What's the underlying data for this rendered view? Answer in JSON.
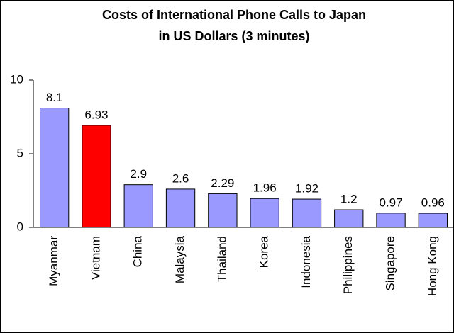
{
  "chart_data": {
    "type": "bar",
    "title": [
      "Costs of International Phone Calls to Japan",
      "in US Dollars (3 minutes)"
    ],
    "categories": [
      "Myanmar",
      "Vietnam",
      "China",
      "Malaysia",
      "Thailand",
      "Korea",
      "Indonesia",
      "Philippines",
      "Singapore",
      "Hong Kong"
    ],
    "values": [
      8.1,
      6.93,
      2.9,
      2.6,
      2.29,
      1.96,
      1.92,
      1.2,
      0.97,
      0.96
    ],
    "colors": [
      "#9999ff",
      "#ff0000",
      "#9999ff",
      "#9999ff",
      "#9999ff",
      "#9999ff",
      "#9999ff",
      "#9999ff",
      "#9999ff",
      "#9999ff"
    ],
    "ylim": [
      0,
      10
    ],
    "yticks": [
      0,
      5,
      10
    ],
    "grid": false
  }
}
